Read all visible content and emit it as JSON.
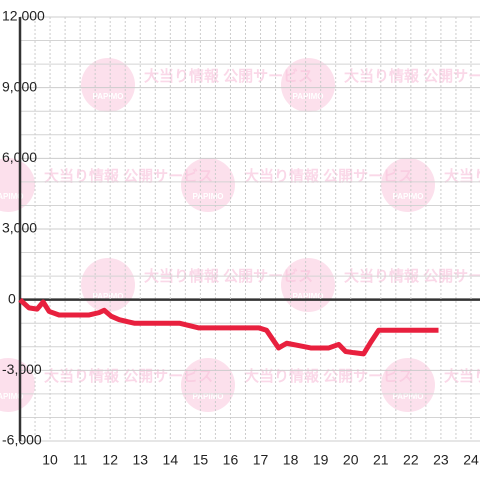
{
  "chart_data": {
    "type": "line",
    "watermark": "大当り情報 公開サービス",
    "watermark_logo": "PAPIMO",
    "xlim": [
      9,
      24.3
    ],
    "xticks": [
      10,
      11,
      12,
      13,
      14,
      15,
      16,
      17,
      18,
      19,
      20,
      21,
      22,
      23,
      24
    ],
    "x_minor_ticks": [
      9.5,
      10.5,
      11.5,
      12.5,
      13.5,
      14.5,
      15.5,
      16.5,
      17.5,
      18.5,
      19.5,
      20.5,
      21.5,
      22.5,
      23.5
    ],
    "ylim": [
      -6000,
      12000
    ],
    "yticks": [
      {
        "value": -6000,
        "label": "-6,000"
      },
      {
        "value": -3000,
        "label": "-3,000"
      },
      0,
      {
        "value": 3000,
        "label": "3,000"
      },
      {
        "value": 6000,
        "label": "6,000"
      },
      {
        "value": 9000,
        "label": "9,000"
      },
      {
        "value": 12000,
        "label": "12,000"
      }
    ],
    "y_minor_ticks": [
      -5000,
      -4000,
      -2000,
      -1000,
      1000,
      2000,
      4000,
      5000,
      7000,
      8000,
      10000,
      11000
    ],
    "grid": true,
    "series": [
      {
        "color": "#e8203e",
        "x": [
          9.0,
          9.3,
          9.57,
          9.77,
          9.97,
          10.3,
          11.3,
          11.63,
          11.8,
          12.03,
          12.3,
          12.8,
          14.3,
          14.95,
          16.95,
          17.2,
          17.6,
          17.87,
          18.27,
          18.67,
          19.27,
          19.6,
          19.83,
          20.1,
          20.43,
          20.67,
          20.93,
          21.26,
          22.92
        ],
        "values": [
          0,
          -350,
          -400,
          -100,
          -500,
          -650,
          -650,
          -550,
          -450,
          -700,
          -850,
          -1000,
          -1000,
          -1200,
          -1200,
          -1300,
          -2050,
          -1850,
          -1950,
          -2050,
          -2050,
          -1900,
          -2200,
          -2250,
          -2300,
          -1800,
          -1300,
          -1300,
          -1300
        ]
      }
    ]
  }
}
